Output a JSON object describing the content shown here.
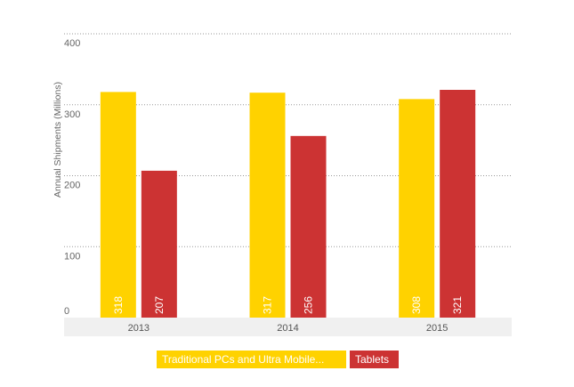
{
  "chart_data": {
    "type": "bar",
    "categories": [
      "2013",
      "2014",
      "2015"
    ],
    "series": [
      {
        "name": "Traditional PCs and Ultra Mobile...",
        "values": [
          318,
          317,
          308
        ],
        "color": "#FFD200"
      },
      {
        "name": "Tablets",
        "values": [
          207,
          256,
          321
        ],
        "color": "#CC3333"
      }
    ],
    "ylabel": "Annual Shipments (Millions)",
    "xlabel": "",
    "ylim": [
      0,
      400
    ],
    "yticks": [
      0,
      100,
      200,
      300,
      400
    ],
    "grid": true,
    "legend_position": "bottom-center"
  }
}
